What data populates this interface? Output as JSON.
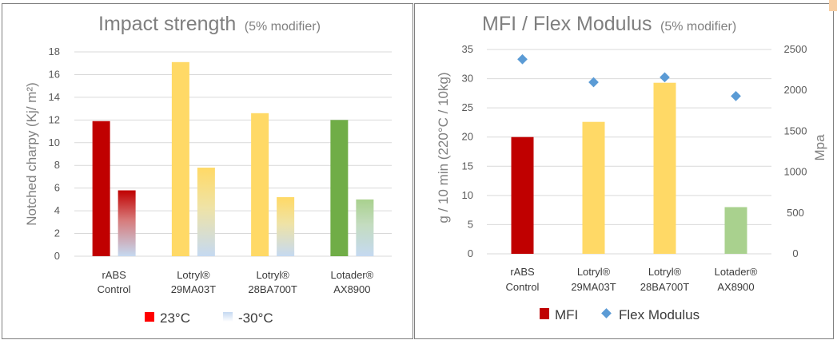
{
  "chart_data": [
    {
      "type": "bar",
      "title": "Impact strength",
      "subtitle": "(5% modifier)",
      "ylabel": "Notched charpy (Kj/ m²)",
      "ylim": [
        0,
        18
      ],
      "yticks": [
        "0",
        "2",
        "4",
        "6",
        "8",
        "10",
        "12",
        "14",
        "16",
        "18"
      ],
      "categories": [
        [
          "rABS",
          "Control"
        ],
        [
          "Lotryl®",
          "29MA03T"
        ],
        [
          "Lotryl®",
          "28BA700T"
        ],
        [
          "Lotader®",
          "AX8900"
        ]
      ],
      "series": [
        {
          "name": "23°C",
          "values": [
            11.9,
            17.1,
            12.6,
            12.0
          ],
          "colors": [
            "#c00000",
            "#ffd966",
            "#ffd966",
            "#70ad47"
          ]
        },
        {
          "name": "-30°C",
          "values": [
            5.8,
            7.8,
            5.2,
            5.0
          ],
          "colors": [
            "#c00000",
            "#ffd966",
            "#ffd966",
            "#a9d18e"
          ]
        }
      ],
      "legend_position": "bottom",
      "legend": {
        "s1_color": "#ff0000",
        "s2_color": "#c5d9f1"
      },
      "grid": true
    },
    {
      "type": "bar",
      "title": "MFI / Flex Modulus",
      "subtitle": "(5% modifier)",
      "ylabel": "g / 10 min (220°C / 10kg)",
      "y2label": "Mpa",
      "ylim": [
        0,
        35
      ],
      "y2lim": [
        0,
        2500
      ],
      "yticks": [
        "0",
        "5",
        "10",
        "15",
        "20",
        "25",
        "30",
        "35"
      ],
      "y2ticks": [
        "0",
        "500",
        "1000",
        "1500",
        "2000",
        "2500"
      ],
      "categories": [
        [
          "rABS",
          "Control"
        ],
        [
          "Lotryl®",
          "29MA03T"
        ],
        [
          "Lotryl®",
          "28BA700T"
        ],
        [
          "Lotader®",
          "AX8900"
        ]
      ],
      "series": [
        {
          "name": "MFI",
          "type": "bar",
          "values": [
            20.0,
            22.6,
            29.3,
            8.0
          ],
          "colors": [
            "#c00000",
            "#ffd966",
            "#ffd966",
            "#a9d18e"
          ]
        },
        {
          "name": "Flex Modulus",
          "type": "scatter",
          "axis": "right",
          "values": [
            2380,
            2100,
            2160,
            1930
          ],
          "color": "#5b9bd5"
        }
      ],
      "legend_position": "bottom",
      "legend": {
        "s1_color": "#c00000",
        "s2_color": "#5b9bd5"
      },
      "grid": true
    }
  ]
}
